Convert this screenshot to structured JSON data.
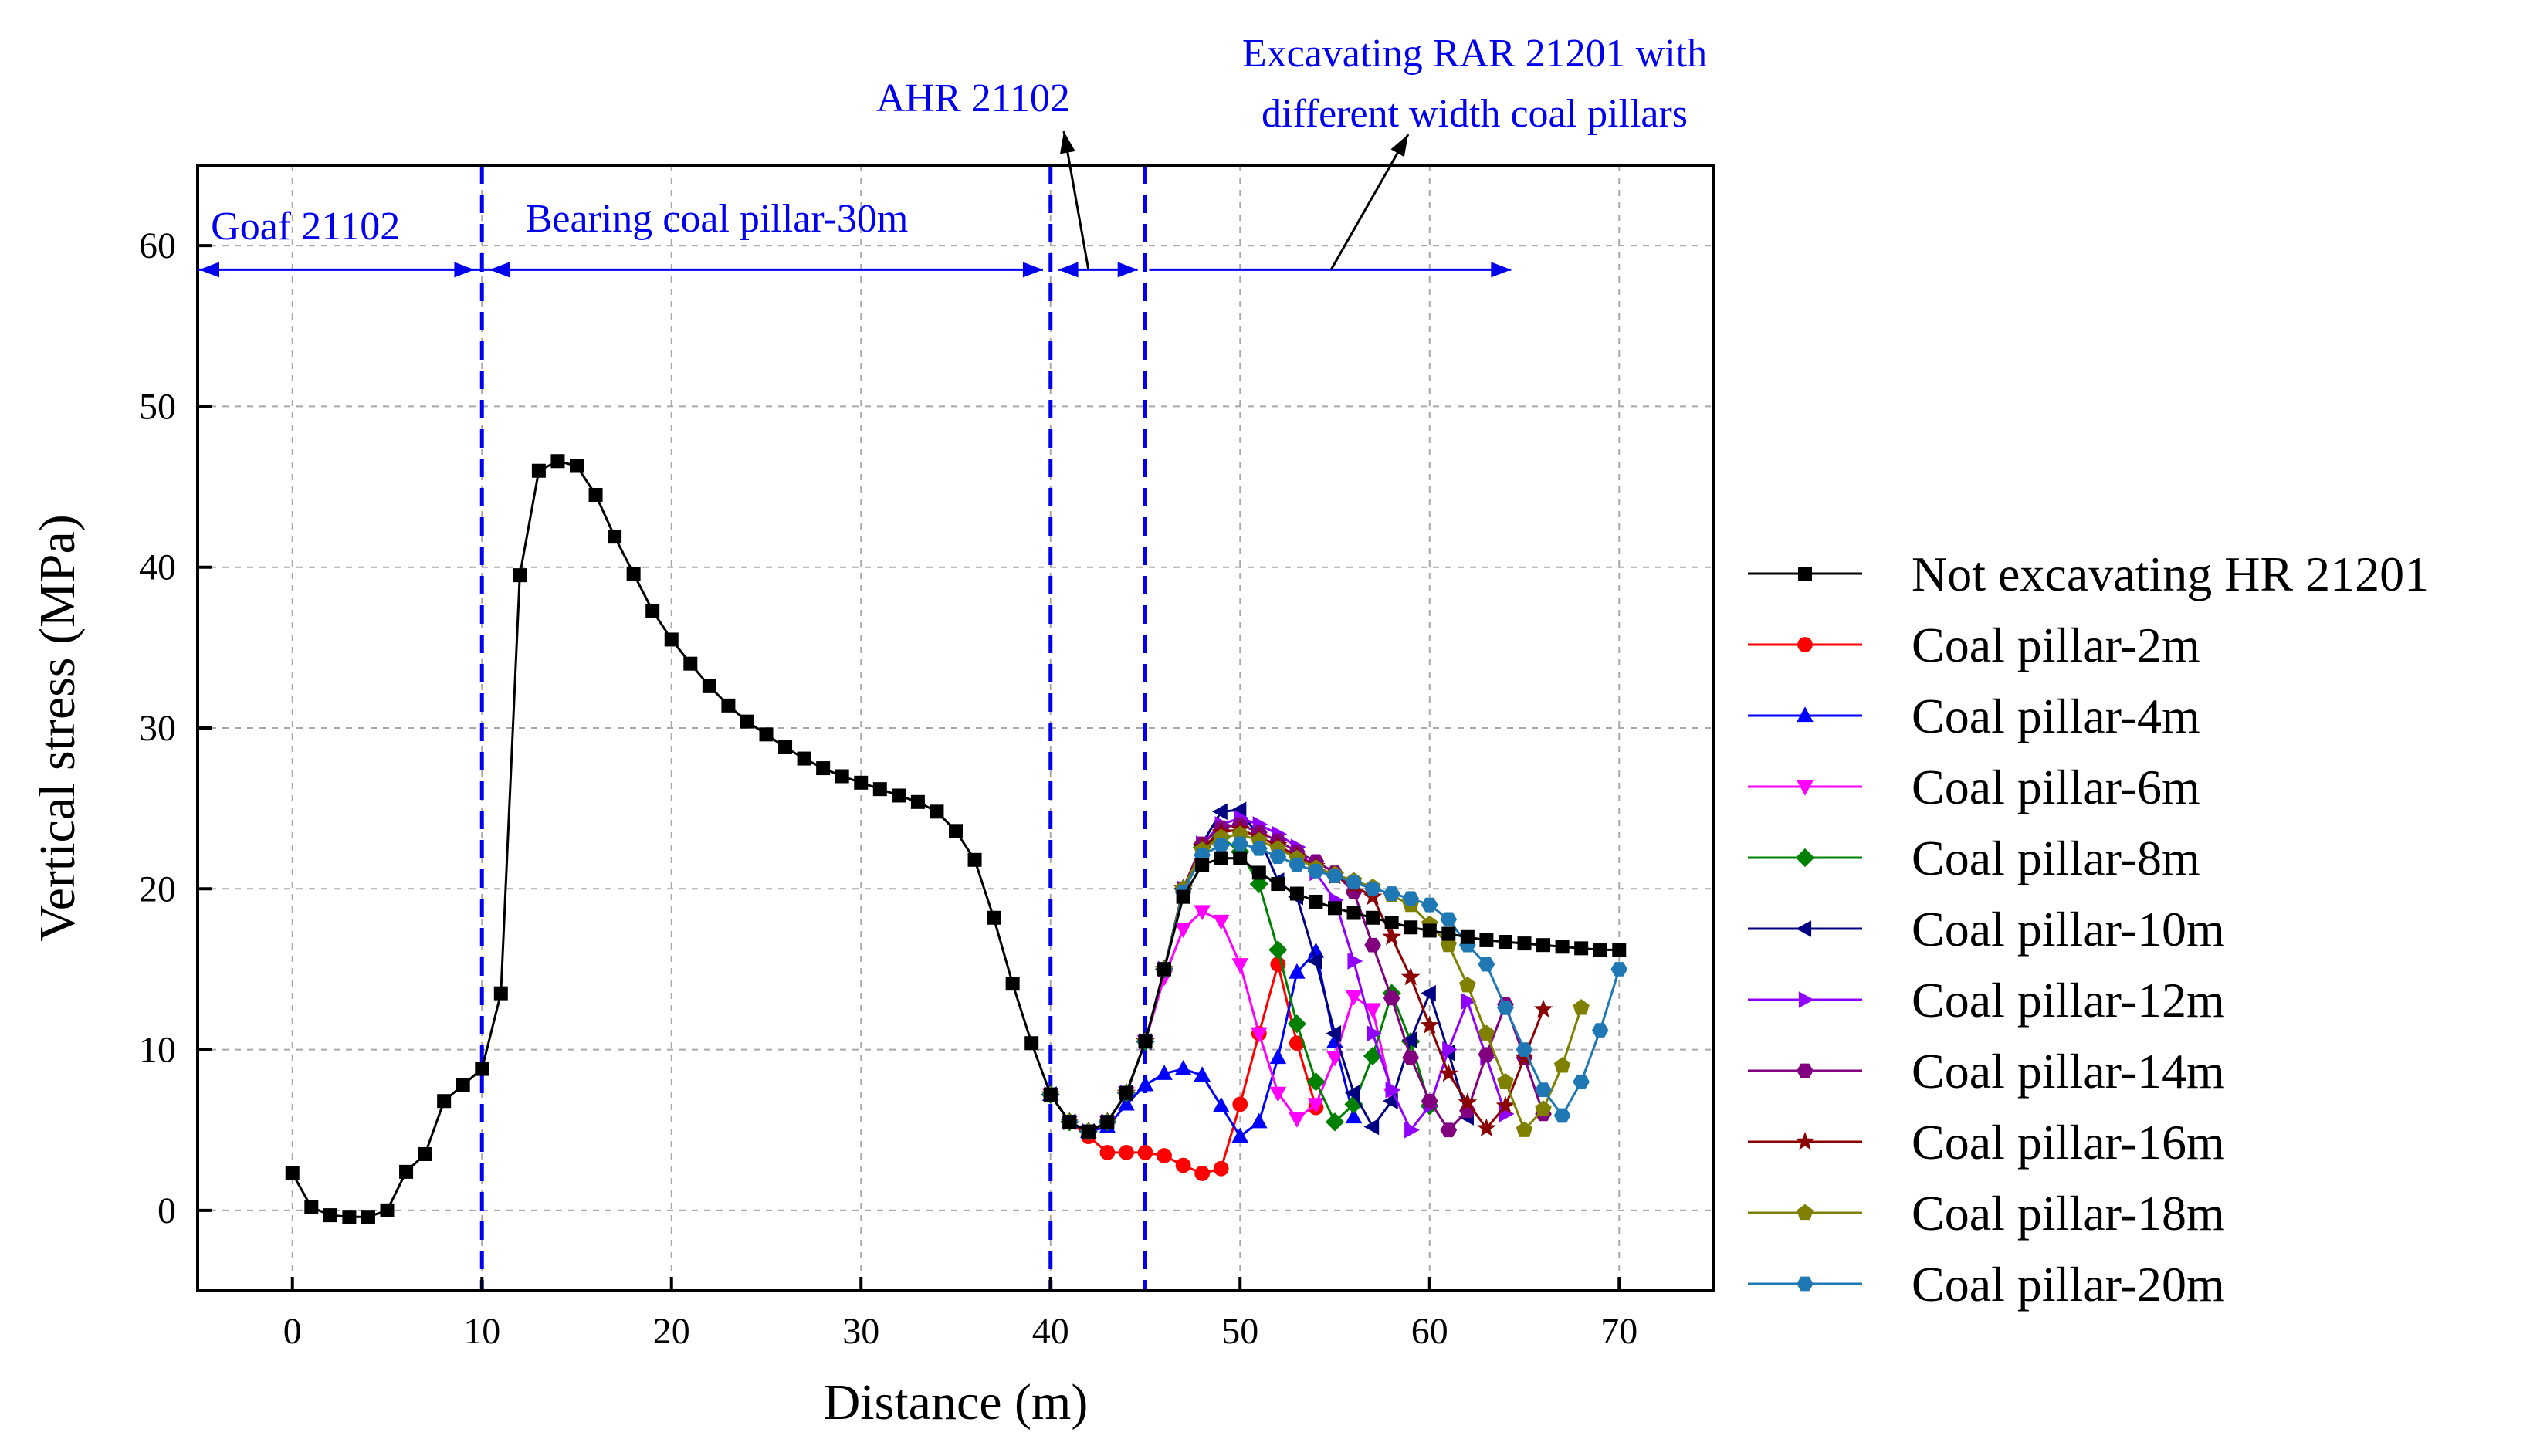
{
  "chart_data": {
    "type": "line",
    "title": "",
    "xlabel": "Distance (m)",
    "ylabel": "Vertical stress (MPa)",
    "xlim": [
      -5,
      75
    ],
    "ylim": [
      -5,
      65
    ],
    "xticks": [
      0,
      10,
      20,
      30,
      40,
      50,
      60,
      70
    ],
    "yticks": [
      0,
      10,
      20,
      30,
      40,
      50,
      60
    ],
    "grid": true,
    "legend_position": "right",
    "annotation_color": "#0000ee",
    "annotations": {
      "goaf": "Goaf 21102",
      "bearing": "Bearing coal pillar-30m",
      "ahr": "AHR 21102",
      "excavating_line1": "Excavating RAR 21201 with",
      "excavating_line2": "different width coal pillars"
    },
    "boundaries_x": [
      10,
      40,
      45
    ],
    "series": [
      {
        "name": "Not excavating HR 21201",
        "color": "#000000",
        "marker": "square",
        "x": [
          0,
          1,
          2,
          3,
          4,
          5,
          6,
          7,
          8,
          9,
          10,
          11,
          12,
          13,
          14,
          15,
          16,
          17,
          18,
          19,
          20,
          21,
          22,
          23,
          24,
          25,
          26,
          27,
          28,
          29,
          30,
          31,
          32,
          33,
          34,
          35,
          36,
          37,
          38,
          39,
          40,
          41,
          42,
          43,
          44,
          45,
          46,
          47,
          48,
          49,
          50,
          51,
          52,
          53,
          54,
          55,
          56,
          57,
          58,
          59,
          60,
          61,
          62,
          63,
          64,
          65,
          66,
          67,
          68,
          69,
          70
        ],
        "values": [
          2.3,
          0.2,
          -0.3,
          -0.4,
          -0.4,
          0.0,
          2.4,
          3.5,
          6.8,
          7.8,
          8.8,
          13.5,
          39.5,
          46.0,
          46.6,
          46.3,
          44.5,
          41.9,
          39.6,
          37.3,
          35.5,
          34.0,
          32.6,
          31.4,
          30.4,
          29.6,
          28.8,
          28.1,
          27.5,
          27.0,
          26.6,
          26.2,
          25.8,
          25.4,
          24.8,
          23.6,
          21.8,
          18.2,
          14.1,
          10.4,
          7.2,
          5.5,
          4.9,
          5.5,
          7.3,
          10.5,
          15.0,
          19.5,
          21.5,
          21.9,
          21.9,
          21.0,
          20.3,
          19.7,
          19.2,
          18.8,
          18.5,
          18.2,
          17.9,
          17.6,
          17.4,
          17.2,
          17.0,
          16.8,
          16.7,
          16.6,
          16.5,
          16.4,
          16.3,
          16.2,
          16.2
        ]
      },
      {
        "name": "Coal pillar-2m",
        "color": "#ff0000",
        "marker": "circle",
        "x": [
          40,
          41,
          42,
          43,
          44,
          45,
          46,
          47,
          48,
          49,
          50,
          51,
          52,
          53,
          54
        ],
        "values": [
          7.2,
          5.5,
          4.6,
          3.6,
          3.6,
          3.6,
          3.4,
          2.8,
          2.3,
          2.6,
          6.6,
          11.0,
          15.3,
          10.4,
          6.4
        ]
      },
      {
        "name": "Coal pillar-4m",
        "color": "#0000ff",
        "marker": "triangle-up",
        "x": [
          40,
          41,
          42,
          43,
          44,
          45,
          46,
          47,
          48,
          49,
          50,
          51,
          52,
          53,
          54,
          55,
          56
        ],
        "values": [
          7.2,
          5.5,
          4.9,
          5.2,
          6.6,
          7.8,
          8.5,
          8.8,
          8.4,
          6.5,
          4.6,
          5.5,
          9.5,
          14.8,
          16.1,
          10.5,
          5.8
        ]
      },
      {
        "name": "Coal pillar-6m",
        "color": "#ff00ff",
        "marker": "triangle-down",
        "x": [
          40,
          41,
          42,
          43,
          44,
          45,
          46,
          47,
          48,
          49,
          50,
          51,
          52,
          53,
          54,
          55,
          56,
          57,
          58
        ],
        "values": [
          7.2,
          5.5,
          4.9,
          5.5,
          7.3,
          10.5,
          14.5,
          17.5,
          18.6,
          18.0,
          15.3,
          11.0,
          7.3,
          5.7,
          6.6,
          9.5,
          13.3,
          12.5,
          7.2
        ]
      },
      {
        "name": "Coal pillar-8m",
        "color": "#008000",
        "marker": "diamond",
        "x": [
          40,
          41,
          42,
          43,
          44,
          45,
          46,
          47,
          48,
          49,
          50,
          51,
          52,
          53,
          54,
          55,
          56,
          57,
          58,
          59,
          60
        ],
        "values": [
          7.2,
          5.5,
          4.9,
          5.5,
          7.3,
          10.5,
          15.0,
          20.0,
          22.6,
          23.2,
          22.3,
          20.3,
          16.2,
          11.6,
          8.0,
          5.5,
          6.6,
          9.6,
          13.5,
          10.5,
          6.5
        ]
      },
      {
        "name": "Coal pillar-10m",
        "color": "#000080",
        "marker": "triangle-left",
        "x": [
          40,
          41,
          42,
          43,
          44,
          45,
          46,
          47,
          48,
          49,
          50,
          51,
          52,
          53,
          54,
          55,
          56,
          57,
          58,
          59,
          60,
          61,
          62
        ],
        "values": [
          7.2,
          5.5,
          4.9,
          5.5,
          7.3,
          10.5,
          15.0,
          20.0,
          22.8,
          24.8,
          24.9,
          23.2,
          20.5,
          19.5,
          15.5,
          11.0,
          7.3,
          5.2,
          6.8,
          10.6,
          13.5,
          9.8,
          5.8
        ]
      },
      {
        "name": "Coal pillar-12m",
        "color": "#9000ff",
        "marker": "triangle-right",
        "x": [
          40,
          41,
          42,
          43,
          44,
          45,
          46,
          47,
          48,
          49,
          50,
          51,
          52,
          53,
          54,
          55,
          56,
          57,
          58,
          59,
          60,
          61,
          62,
          63,
          64
        ],
        "values": [
          7.2,
          5.5,
          4.9,
          5.5,
          7.3,
          10.5,
          15.0,
          20.0,
          22.8,
          24.0,
          24.4,
          24.0,
          23.4,
          22.6,
          21.0,
          19.3,
          15.5,
          11.0,
          7.5,
          5.0,
          6.5,
          10.0,
          13.0,
          9.5,
          6.0
        ]
      },
      {
        "name": "Coal pillar-14m",
        "color": "#800080",
        "marker": "hexagon",
        "x": [
          40,
          41,
          42,
          43,
          44,
          45,
          46,
          47,
          48,
          49,
          50,
          51,
          52,
          53,
          54,
          55,
          56,
          57,
          58,
          59,
          60,
          61,
          62,
          63,
          64,
          65,
          66
        ],
        "values": [
          7.2,
          5.5,
          4.9,
          5.5,
          7.3,
          10.5,
          15.0,
          20.0,
          22.8,
          23.8,
          24.0,
          23.5,
          23.0,
          22.3,
          21.7,
          21.0,
          19.8,
          16.5,
          13.2,
          9.5,
          6.8,
          5.0,
          6.2,
          9.7,
          12.8,
          9.5,
          6.0
        ]
      },
      {
        "name": "Coal pillar-16m",
        "color": "#8b0000",
        "marker": "star",
        "x": [
          40,
          41,
          42,
          43,
          44,
          45,
          46,
          47,
          48,
          49,
          50,
          51,
          52,
          53,
          54,
          55,
          56,
          57,
          58,
          59,
          60,
          61,
          62,
          63,
          64,
          65,
          66
        ],
        "values": [
          7.2,
          5.5,
          4.9,
          5.5,
          7.3,
          10.5,
          15.0,
          20.0,
          22.6,
          23.5,
          23.7,
          23.2,
          22.7,
          22.0,
          21.4,
          20.8,
          20.2,
          19.5,
          17.0,
          14.5,
          11.5,
          8.5,
          6.7,
          5.1,
          6.5,
          9.5,
          12.5
        ]
      },
      {
        "name": "Coal pillar-18m",
        "color": "#808000",
        "marker": "pentagon",
        "x": [
          40,
          41,
          42,
          43,
          44,
          45,
          46,
          47,
          48,
          49,
          50,
          51,
          52,
          53,
          54,
          55,
          56,
          57,
          58,
          59,
          60,
          61,
          62,
          63,
          64,
          65,
          66,
          67,
          68
        ],
        "values": [
          7.2,
          5.5,
          4.9,
          5.5,
          7.3,
          10.5,
          15.0,
          20.0,
          22.4,
          23.2,
          23.4,
          23.0,
          22.5,
          21.9,
          21.3,
          20.9,
          20.5,
          20.1,
          19.6,
          19.0,
          17.8,
          16.5,
          14.0,
          11.0,
          8.0,
          5.0,
          6.3,
          9.0,
          12.6
        ]
      },
      {
        "name": "Coal pillar-20m",
        "color": "#1f77b4",
        "marker": "hexagon",
        "x": [
          40,
          41,
          42,
          43,
          44,
          45,
          46,
          47,
          48,
          49,
          50,
          51,
          52,
          53,
          54,
          55,
          56,
          57,
          58,
          59,
          60,
          61,
          62,
          63,
          64,
          65,
          66,
          67,
          68,
          69,
          70
        ],
        "values": [
          7.2,
          5.5,
          4.9,
          5.5,
          7.3,
          10.5,
          15.0,
          19.8,
          22.1,
          22.7,
          22.8,
          22.5,
          22.0,
          21.5,
          21.1,
          20.8,
          20.4,
          20.0,
          19.7,
          19.4,
          19.0,
          18.1,
          16.5,
          15.3,
          12.6,
          10.0,
          7.5,
          5.9,
          8.0,
          11.2,
          15.0
        ]
      }
    ]
  }
}
